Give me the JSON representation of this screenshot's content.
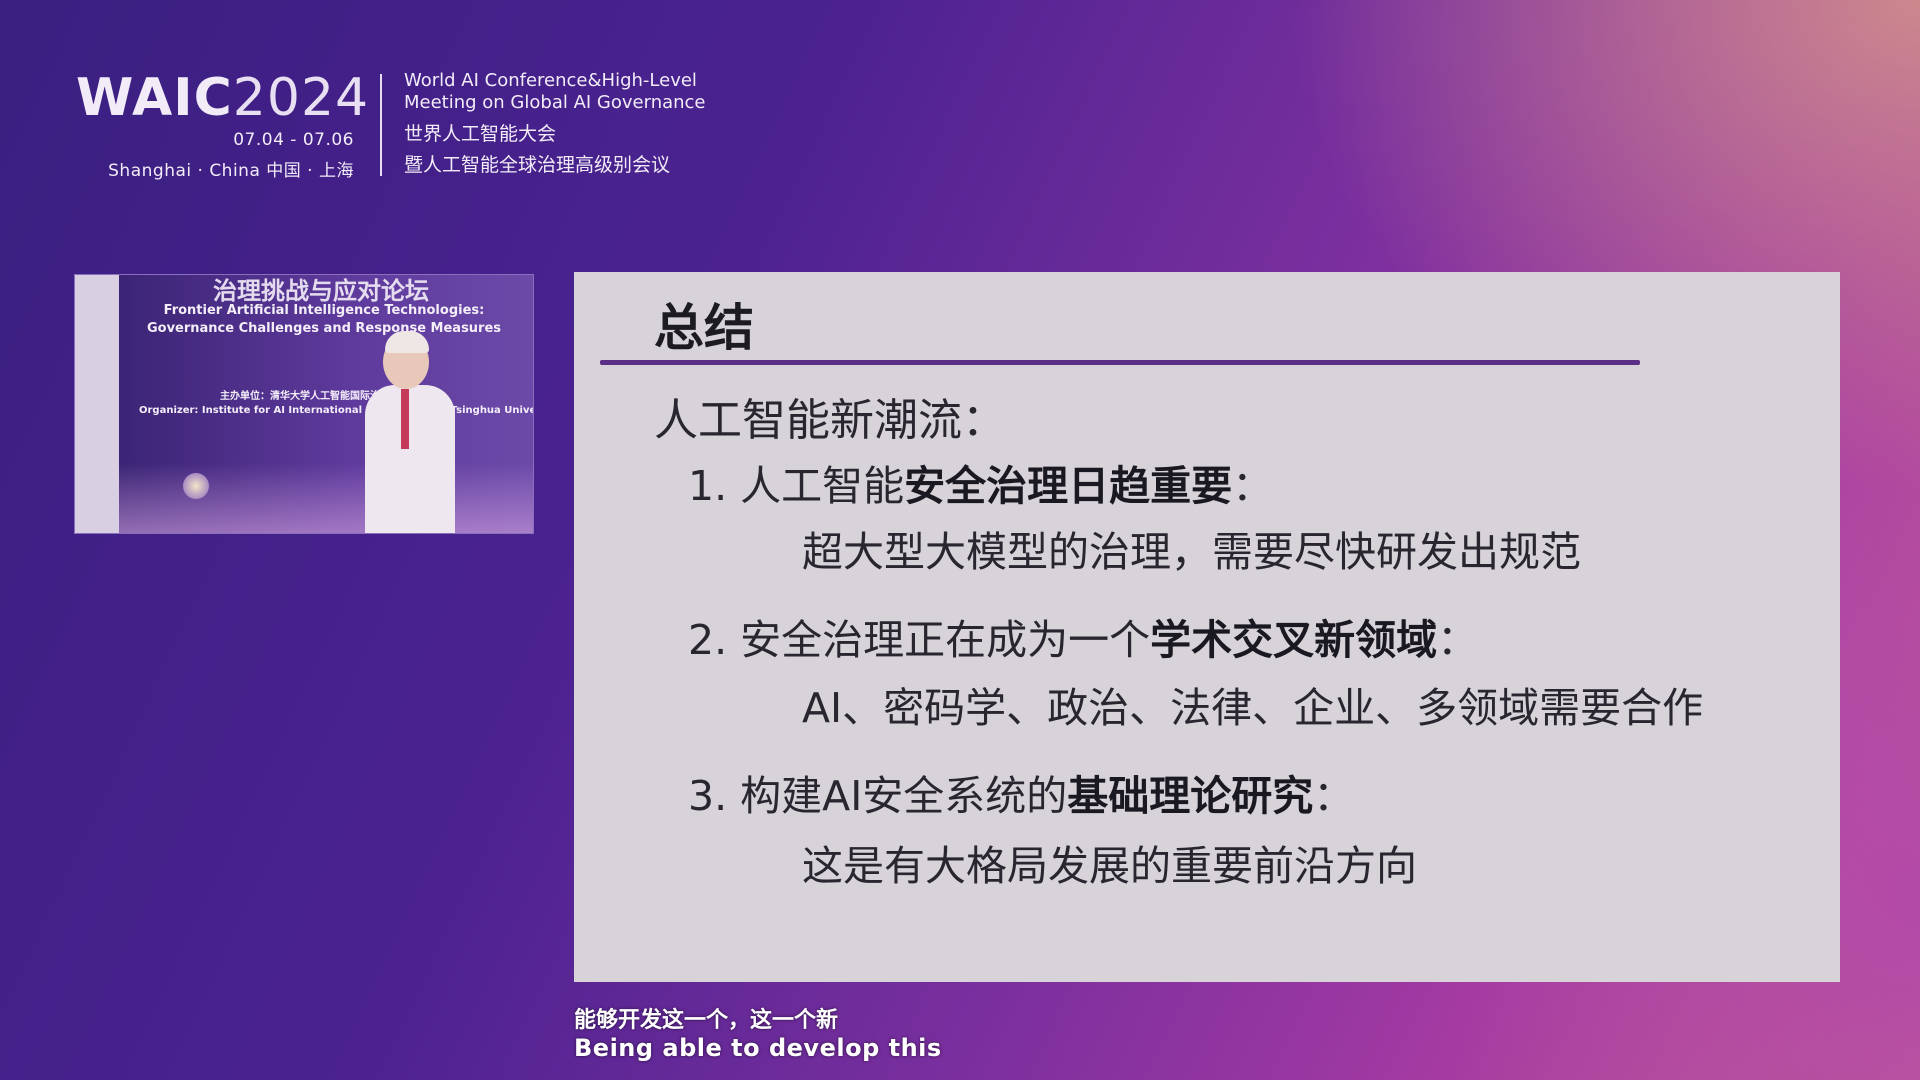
{
  "header": {
    "logo_word": "WAIC",
    "logo_year": "2024",
    "dates": "07.04 - 07.06",
    "place": "Shanghai · China  中国 · 上海",
    "conference_en_line1": "World AI Conference&High-Level",
    "conference_en_line2": "Meeting on Global AI Governance",
    "conference_zh_line1": "世界人工智能大会",
    "conference_zh_line2": "暨人工智能全球治理高级别会议"
  },
  "video": {
    "banner_zh": "治理挑战与应对论坛",
    "banner_en_line1": "Frontier Artificial Intelligence Technologies:",
    "banner_en_line2": "Governance Challenges and Response Measures",
    "organizer_zh": "主办单位：清华大学人工智能国际治理研究院",
    "organizer_en": "Organizer: Institute for AI International Governance of Tsinghua University"
  },
  "slide": {
    "title": "总结",
    "heading": "人工智能新潮流：",
    "items": [
      {
        "prefix": "1. 人工智能",
        "bold": "安全治理日趋重要",
        "suffix": "：",
        "detail": "超大型大模型的治理，需要尽快研发出规范"
      },
      {
        "prefix": "2. 安全治理正在成为一个",
        "bold": "学术交叉新领域",
        "suffix": "：",
        "detail": "AI、密码学、政治、法律、企业、多领域需要合作"
      },
      {
        "prefix": "3. 构建AI安全系统的",
        "bold": "基础理论研究",
        "suffix": "：",
        "detail": "这是有大格局发展的重要前沿方向"
      }
    ]
  },
  "subtitles": {
    "zh": "能够开发这一个，这一个新",
    "en": "Being able to develop this"
  },
  "colors": {
    "slide_bg": "#d7d3d9",
    "rule": "#5b2f86",
    "background_left": "#3a1f80",
    "background_right": "#c4608f"
  }
}
